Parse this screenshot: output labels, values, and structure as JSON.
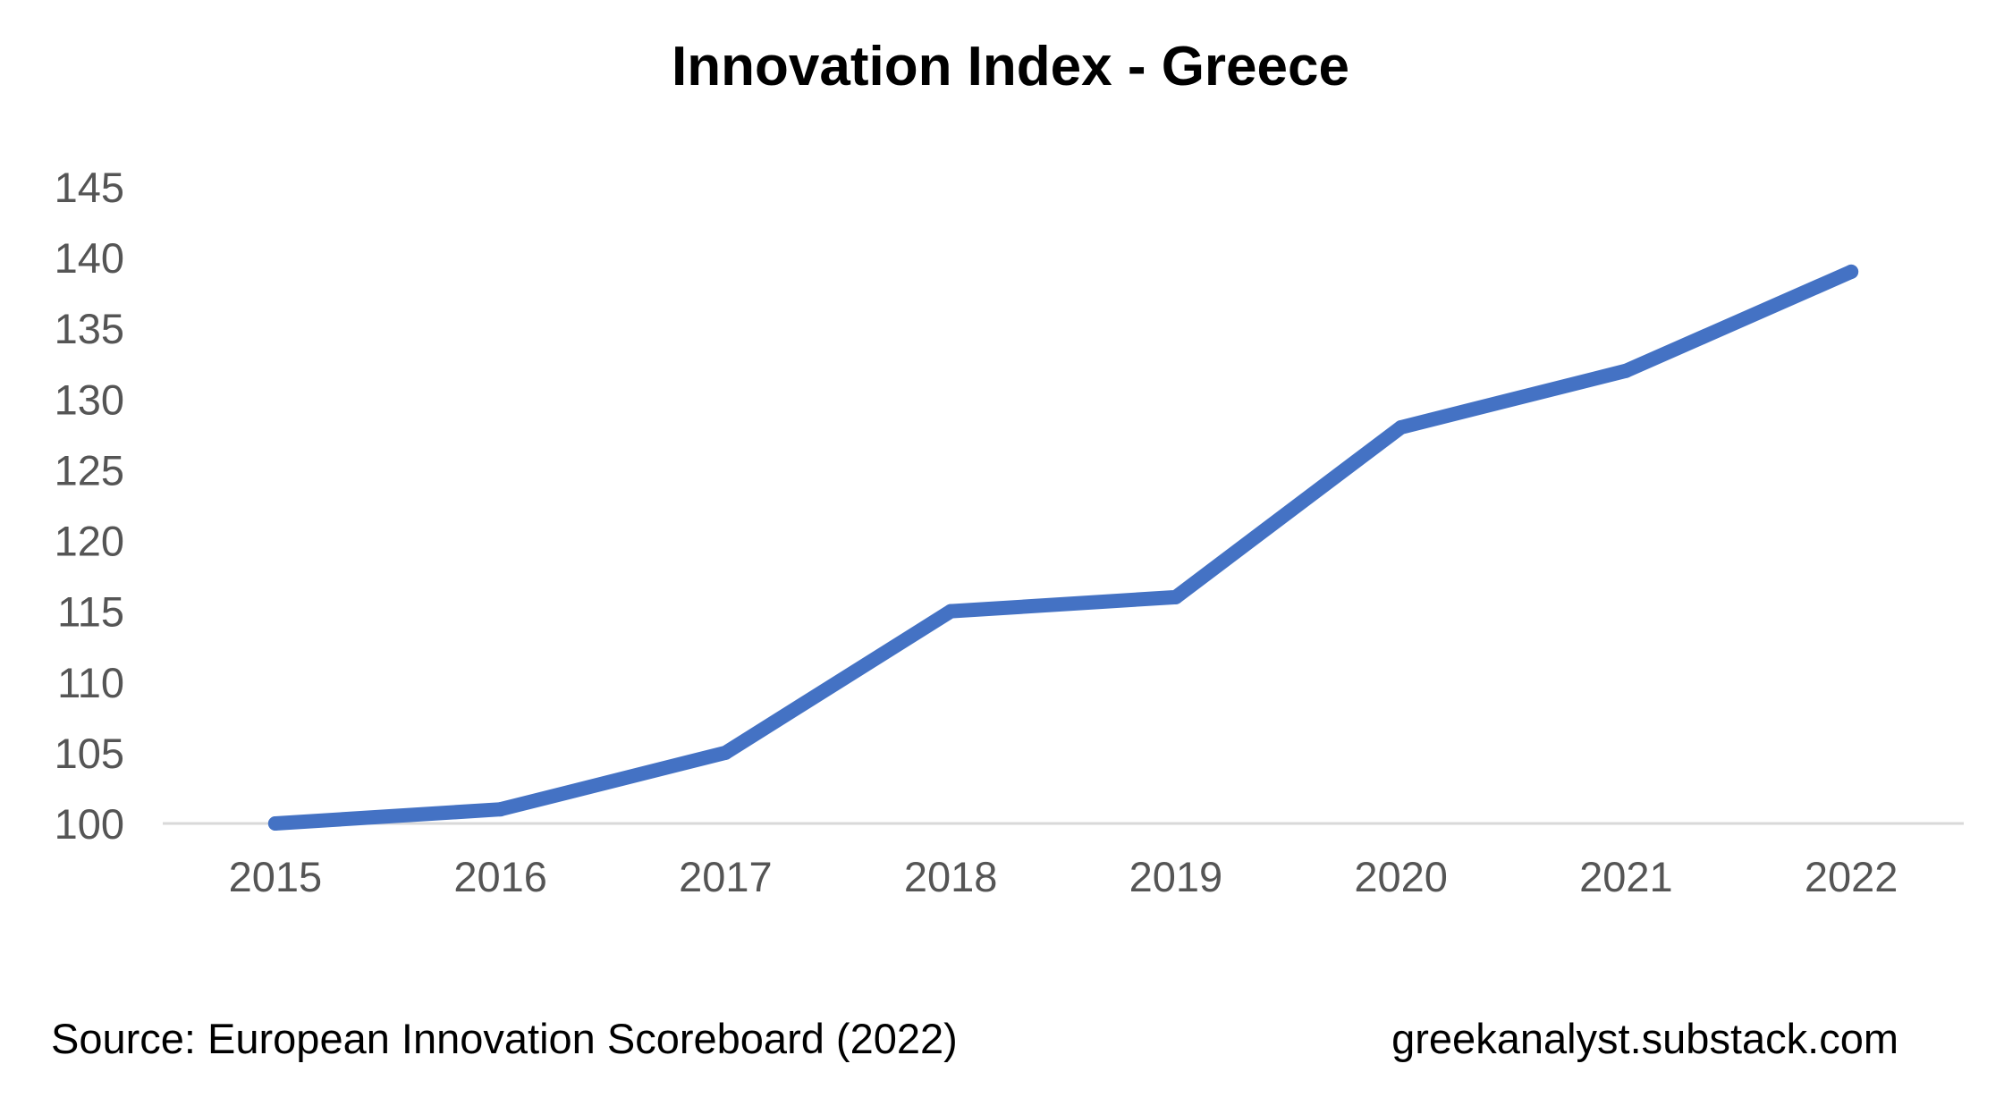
{
  "chart_data": {
    "type": "line",
    "title": "Innovation Index - Greece",
    "xlabel": "",
    "ylabel": "",
    "categories": [
      "2015",
      "2016",
      "2017",
      "2018",
      "2019",
      "2020",
      "2021",
      "2022"
    ],
    "series": [
      {
        "values": [
          100,
          101,
          105,
          115,
          116,
          128,
          132,
          139
        ],
        "color": "#4472C4"
      }
    ],
    "ylim": [
      100,
      145
    ],
    "yticks": [
      "100",
      "105",
      "110",
      "115",
      "120",
      "125",
      "130",
      "135",
      "140",
      "145"
    ],
    "grid": false
  },
  "footer": {
    "source": "Source: European Innovation Scoreboard (2022)",
    "site": "greekanalyst.substack.com"
  }
}
